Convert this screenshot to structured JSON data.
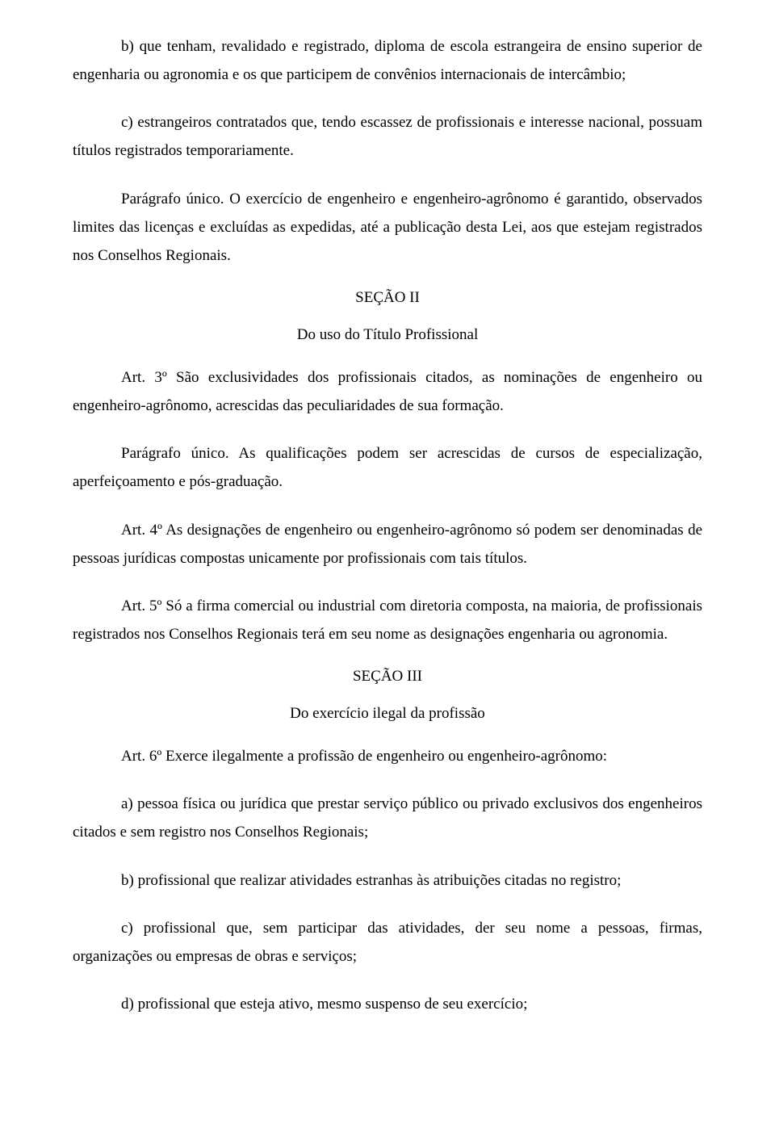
{
  "p1": "b) que tenham, revalidado e registrado, diploma de escola estrangeira de ensino superior de engenharia ou agronomia e os que participem de convênios internacionais de intercâmbio;",
  "p2": "c) estrangeiros contratados que, tendo escassez de profissionais e interesse nacional, possuam títulos registrados temporariamente.",
  "p3": "Parágrafo único. O exercício de engenheiro e engenheiro-agrônomo é garantido, observados limites das licenças e excluídas as expedidas, até a publicação desta Lei, aos que estejam registrados nos Conselhos Regionais.",
  "section2_heading": "SEÇÃO II",
  "section2_sub": "Do uso do Título Profissional",
  "p4": "Art. 3º São exclusividades dos profissionais citados, as nominações de engenheiro ou engenheiro-agrônomo, acrescidas das peculiaridades de sua formação.",
  "p5": "Parágrafo único. As qualificações podem ser acrescidas de cursos de especialização, aperfeiçoamento e pós-graduação.",
  "p6": "Art. 4º As designações de engenheiro ou engenheiro-agrônomo só podem ser denominadas de pessoas jurídicas compostas unicamente por profissionais com tais títulos.",
  "p7": "Art. 5º Só a firma comercial ou industrial com diretoria composta, na maioria, de profissionais registrados nos Conselhos Regionais terá em seu nome as designações engenharia ou agronomia.",
  "section3_heading": "SEÇÃO III",
  "section3_sub": "Do exercício ilegal da profissão",
  "p8": "Art. 6º Exerce ilegalmente a profissão de engenheiro ou engenheiro-agrônomo:",
  "p9": "a) pessoa física ou jurídica que prestar serviço público ou privado exclusivos dos engenheiros citados e sem registro nos Conselhos Regionais;",
  "p10": "b) profissional que realizar atividades estranhas às atribuições citadas no registro;",
  "p11": "c) profissional que, sem participar das atividades, der seu nome a pessoas, firmas, organizações ou empresas de obras e serviços;",
  "p12": "d) profissional que esteja ativo, mesmo suspenso de seu exercício;"
}
